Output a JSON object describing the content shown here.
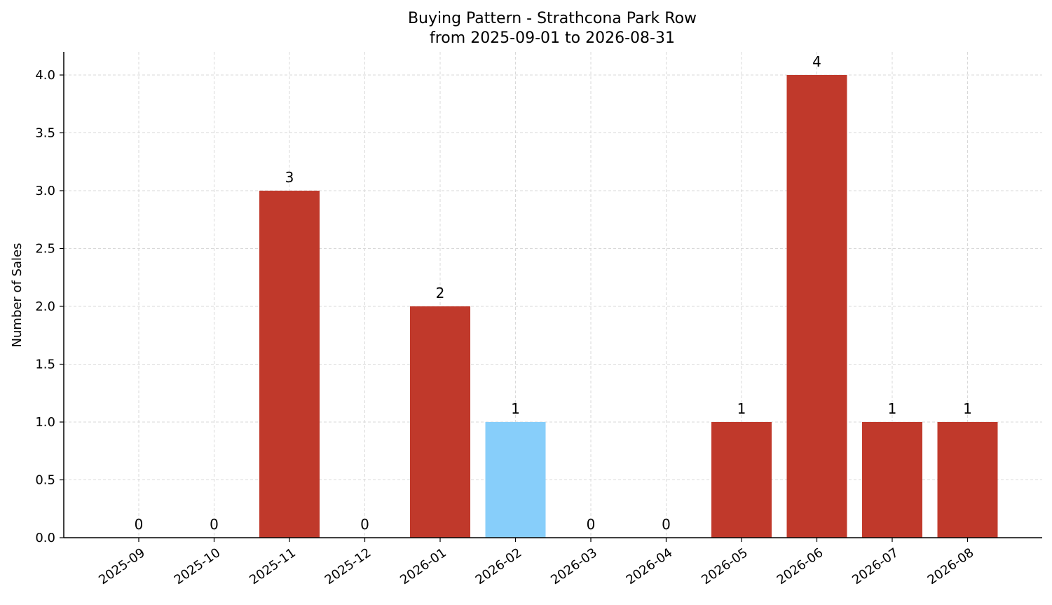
{
  "chart_data": {
    "type": "bar",
    "title": "Buying Pattern - Strathcona Park Row",
    "subtitle": "from 2025-09-01 to 2026-08-31",
    "xlabel": "",
    "ylabel": "Number of Sales",
    "categories": [
      "2025-09",
      "2025-10",
      "2025-11",
      "2025-12",
      "2026-01",
      "2026-02",
      "2026-03",
      "2026-04",
      "2026-05",
      "2026-06",
      "2026-07",
      "2026-08"
    ],
    "values": [
      0,
      0,
      3,
      0,
      2,
      1,
      0,
      0,
      1,
      4,
      1,
      1
    ],
    "highlighted_category": "2026-02",
    "ylim": [
      0,
      4.2
    ],
    "yticks": [
      0.0,
      0.5,
      1.0,
      1.5,
      2.0,
      2.5,
      3.0,
      3.5,
      4.0
    ],
    "ytick_labels": [
      "0.0",
      "0.5",
      "1.0",
      "1.5",
      "2.0",
      "2.5",
      "3.0",
      "3.5",
      "4.0"
    ],
    "grid": true,
    "colors": {
      "bar": "#c0392b",
      "highlight": "#87cefa",
      "grid": "#d9d9d9",
      "axis": "#000000"
    }
  }
}
